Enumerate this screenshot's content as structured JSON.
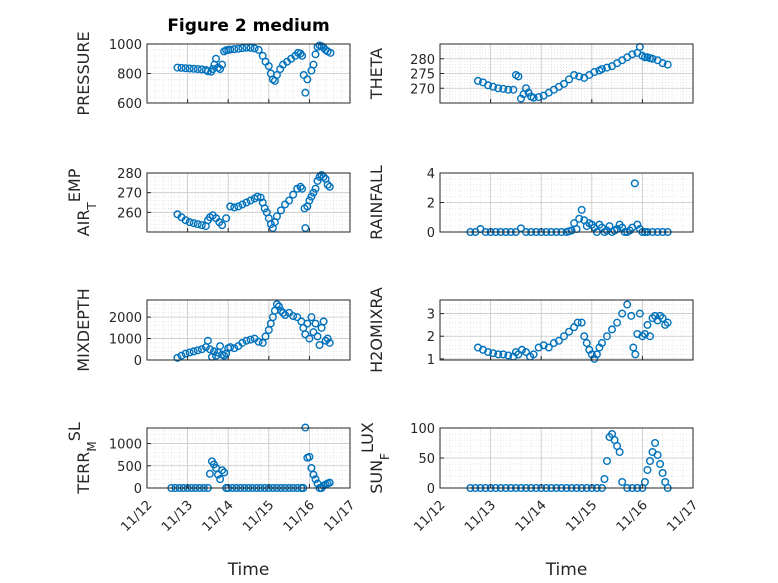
{
  "figure": {
    "title": "Figure 2 medium",
    "marker_color": "#0072BD",
    "x_tick_labels": [
      "11/12",
      "11/13",
      "11/14",
      "11/15",
      "11/16",
      "11/17"
    ]
  },
  "chart_data": [
    {
      "type": "scatter",
      "panel": "PRESSURE",
      "title": "Figure 2 medium",
      "ylabel": "PRESSURE",
      "ylabel_parts": {
        "main": "PRESSURE",
        "sub": "",
        "post": ""
      },
      "xlabel": "",
      "xlim": [
        0,
        5
      ],
      "ylim": [
        600,
        1000
      ],
      "ytick_values": [
        600,
        800,
        1000
      ],
      "ytick_labels": [
        "600",
        "800",
        "1000"
      ],
      "grid": true,
      "x": [
        0.75,
        0.85,
        0.95,
        1.05,
        1.15,
        1.25,
        1.35,
        1.45,
        1.5,
        1.58,
        1.62,
        1.66,
        1.7,
        1.75,
        1.8,
        1.85,
        1.9,
        1.95,
        2.0,
        2.05,
        2.15,
        2.25,
        2.35,
        2.45,
        2.55,
        2.65,
        2.75,
        2.85,
        2.92,
        3.0,
        3.05,
        3.1,
        3.15,
        3.2,
        3.28,
        3.35,
        3.45,
        3.55,
        3.65,
        3.72,
        3.78,
        3.82,
        3.86,
        3.9,
        3.95,
        4.05,
        4.1,
        4.15,
        4.2,
        4.25,
        4.3,
        4.35,
        4.4,
        4.45,
        4.52
      ],
      "y": [
        840,
        838,
        836,
        834,
        832,
        830,
        828,
        824,
        815,
        812,
        830,
        860,
        900,
        840,
        830,
        860,
        950,
        958,
        960,
        962,
        965,
        968,
        972,
        975,
        974,
        970,
        960,
        920,
        880,
        850,
        800,
        760,
        750,
        790,
        830,
        860,
        880,
        900,
        920,
        940,
        935,
        920,
        790,
        670,
        760,
        820,
        860,
        930,
        980,
        990,
        985,
        975,
        960,
        950,
        940
      ]
    },
    {
      "type": "scatter",
      "panel": "THETA",
      "title": "",
      "ylabel": "THETA",
      "ylabel_parts": {
        "main": "THETA",
        "sub": "",
        "post": ""
      },
      "xlabel": "",
      "xlim": [
        0,
        5
      ],
      "ylim": [
        265,
        285
      ],
      "ytick_values": [
        270,
        275,
        280
      ],
      "ytick_labels": [
        "270",
        "275",
        "280"
      ],
      "grid": true,
      "x": [
        0.75,
        0.85,
        0.95,
        1.05,
        1.15,
        1.25,
        1.35,
        1.45,
        1.5,
        1.55,
        1.6,
        1.65,
        1.7,
        1.75,
        1.8,
        1.85,
        1.95,
        2.05,
        2.15,
        2.25,
        2.35,
        2.45,
        2.55,
        2.65,
        2.75,
        2.85,
        2.95,
        3.05,
        3.15,
        3.2,
        3.3,
        3.4,
        3.5,
        3.6,
        3.7,
        3.8,
        3.9,
        3.95,
        4.0,
        4.05,
        4.1,
        4.15,
        4.2,
        4.3,
        4.4,
        4.5
      ],
      "y": [
        272.5,
        272,
        271,
        270.5,
        270,
        269.8,
        269.5,
        269.5,
        274.5,
        274,
        266.5,
        268,
        270,
        268.5,
        267.2,
        266.8,
        267,
        267.5,
        268.5,
        269.5,
        270.5,
        271.5,
        273,
        274.5,
        274,
        273.5,
        274.5,
        275.5,
        276,
        276.5,
        277,
        277.5,
        278.5,
        279.5,
        280.5,
        281.5,
        282,
        284,
        281,
        280.5,
        280.5,
        280.2,
        280,
        279.5,
        278.5,
        278
      ]
    },
    {
      "type": "scatter",
      "panel": "AIR_TEMP",
      "title": "",
      "ylabel": "AIR_TEMP",
      "ylabel_parts": {
        "main": "AIR",
        "sub": "T",
        "post": "EMP"
      },
      "xlabel": "",
      "xlim": [
        0,
        5
      ],
      "ylim": [
        250,
        280
      ],
      "ytick_values": [
        260,
        270,
        280
      ],
      "ytick_labels": [
        "260",
        "270",
        "280"
      ],
      "grid": true,
      "x": [
        0.75,
        0.85,
        0.95,
        1.05,
        1.15,
        1.25,
        1.35,
        1.45,
        1.5,
        1.55,
        1.62,
        1.7,
        1.78,
        1.85,
        1.95,
        2.05,
        2.15,
        2.25,
        2.35,
        2.45,
        2.55,
        2.65,
        2.72,
        2.8,
        2.85,
        2.9,
        2.95,
        3.0,
        3.05,
        3.1,
        3.15,
        3.2,
        3.3,
        3.4,
        3.5,
        3.6,
        3.7,
        3.78,
        3.82,
        3.88,
        3.9,
        3.95,
        4.0,
        4.05,
        4.1,
        4.15,
        4.2,
        4.25,
        4.3,
        4.35,
        4.4,
        4.45,
        4.5
      ],
      "y": [
        259,
        257.5,
        256,
        255,
        254.5,
        254,
        253.5,
        253,
        256,
        257.5,
        258.5,
        257,
        255,
        253.5,
        257,
        263,
        262.5,
        263,
        264,
        265,
        266,
        267,
        268,
        267.5,
        265,
        262,
        260,
        257,
        254,
        252,
        255,
        258,
        261,
        264,
        266,
        269,
        272,
        273,
        272,
        262,
        252,
        263,
        266,
        268,
        270,
        272,
        276,
        278,
        279,
        278,
        277,
        274,
        273
      ]
    },
    {
      "type": "scatter",
      "panel": "RAINFALL",
      "title": "",
      "ylabel": "RAINFALL",
      "ylabel_parts": {
        "main": "RAINFALL",
        "sub": "",
        "post": ""
      },
      "xlabel": "",
      "xlim": [
        0,
        5
      ],
      "ylim": [
        0,
        4
      ],
      "ytick_values": [
        0,
        2,
        4
      ],
      "ytick_labels": [
        "0",
        "2",
        "4"
      ],
      "grid": true,
      "x": [
        0.6,
        0.7,
        0.8,
        0.9,
        1.0,
        1.1,
        1.2,
        1.3,
        1.4,
        1.5,
        1.6,
        1.7,
        1.8,
        1.9,
        2.0,
        2.1,
        2.2,
        2.3,
        2.4,
        2.5,
        2.55,
        2.6,
        2.65,
        2.7,
        2.75,
        2.8,
        2.85,
        2.9,
        2.95,
        3.0,
        3.05,
        3.1,
        3.15,
        3.2,
        3.25,
        3.3,
        3.35,
        3.4,
        3.45,
        3.5,
        3.55,
        3.6,
        3.65,
        3.7,
        3.75,
        3.8,
        3.85,
        3.9,
        3.95,
        4.0,
        4.05,
        4.1,
        4.2,
        4.3,
        4.4,
        4.5
      ],
      "y": [
        0,
        0,
        0.2,
        0,
        0,
        0,
        0,
        0,
        0,
        0,
        0.25,
        0,
        0,
        0,
        0,
        0,
        0,
        0,
        0,
        0,
        0.05,
        0.1,
        0.6,
        0.2,
        0.9,
        1.5,
        0.8,
        0.4,
        0.6,
        0.5,
        0.3,
        0,
        0.5,
        0.3,
        0,
        0.1,
        0.4,
        0,
        0.1,
        0.2,
        0.5,
        0.3,
        0,
        0,
        0.1,
        0.3,
        3.3,
        0.5,
        0.2,
        0,
        0,
        0,
        0,
        0,
        0,
        0
      ]
    },
    {
      "type": "scatter",
      "panel": "MIXDEPTH",
      "title": "",
      "ylabel": "MIXDEPTH",
      "ylabel_parts": {
        "main": "MIXDEPTH",
        "sub": "",
        "post": ""
      },
      "xlabel": "",
      "xlim": [
        0,
        5
      ],
      "ylim": [
        0,
        2800
      ],
      "ytick_values": [
        0,
        1000,
        2000
      ],
      "ytick_labels": [
        "0",
        "1000",
        "2000"
      ],
      "grid": true,
      "x": [
        0.75,
        0.85,
        0.95,
        1.05,
        1.15,
        1.25,
        1.35,
        1.45,
        1.5,
        1.55,
        1.6,
        1.65,
        1.7,
        1.75,
        1.8,
        1.85,
        1.9,
        1.95,
        2.0,
        2.05,
        2.15,
        2.25,
        2.35,
        2.45,
        2.55,
        2.65,
        2.75,
        2.85,
        2.92,
        3.0,
        3.05,
        3.1,
        3.15,
        3.2,
        3.25,
        3.3,
        3.35,
        3.4,
        3.5,
        3.6,
        3.7,
        3.8,
        3.85,
        3.9,
        3.95,
        4.0,
        4.05,
        4.1,
        4.15,
        4.2,
        4.25,
        4.3,
        4.35,
        4.4,
        4.45,
        4.5
      ],
      "y": [
        100,
        200,
        300,
        350,
        400,
        450,
        500,
        600,
        900,
        500,
        150,
        400,
        200,
        350,
        650,
        250,
        200,
        300,
        550,
        600,
        550,
        650,
        800,
        900,
        950,
        1000,
        850,
        800,
        1100,
        1400,
        1700,
        2000,
        2300,
        2600,
        2500,
        2300,
        2200,
        2100,
        2200,
        2050,
        2000,
        1800,
        1500,
        1200,
        1700,
        1000,
        2000,
        1300,
        1700,
        1100,
        700,
        1500,
        1800,
        900,
        1000,
        800
      ]
    },
    {
      "type": "scatter",
      "panel": "H2OMIXRA",
      "title": "",
      "ylabel": "H2OMIXRA",
      "ylabel_parts": {
        "main": "H2OMIXRA",
        "sub": "",
        "post": ""
      },
      "xlabel": "",
      "xlim": [
        0,
        5
      ],
      "ylim": [
        0.95,
        3.6
      ],
      "ytick_values": [
        1,
        2,
        3
      ],
      "ytick_labels": [
        "1",
        "2",
        "3"
      ],
      "grid": true,
      "x": [
        0.75,
        0.85,
        0.95,
        1.05,
        1.15,
        1.25,
        1.35,
        1.45,
        1.5,
        1.55,
        1.62,
        1.7,
        1.78,
        1.85,
        1.95,
        2.05,
        2.15,
        2.25,
        2.35,
        2.45,
        2.55,
        2.65,
        2.72,
        2.8,
        2.85,
        2.9,
        2.95,
        3.0,
        3.05,
        3.1,
        3.15,
        3.2,
        3.3,
        3.4,
        3.5,
        3.6,
        3.7,
        3.78,
        3.82,
        3.86,
        3.9,
        3.95,
        4.0,
        4.05,
        4.1,
        4.15,
        4.2,
        4.25,
        4.3,
        4.35,
        4.4,
        4.45,
        4.5
      ],
      "y": [
        1.5,
        1.4,
        1.3,
        1.25,
        1.2,
        1.2,
        1.15,
        1.1,
        1.3,
        1.2,
        1.4,
        1.3,
        1.1,
        1.2,
        1.5,
        1.6,
        1.5,
        1.7,
        1.8,
        2.0,
        2.2,
        2.4,
        2.6,
        2.6,
        2.0,
        1.7,
        1.4,
        1.2,
        1.0,
        1.2,
        1.5,
        1.7,
        2.0,
        2.3,
        2.6,
        3.0,
        3.4,
        2.9,
        1.5,
        1.2,
        2.1,
        3.0,
        2.0,
        2.1,
        2.5,
        2.0,
        2.8,
        2.9,
        2.7,
        2.9,
        2.8,
        2.5,
        2.6
      ]
    },
    {
      "type": "scatter",
      "panel": "TERR_MSL",
      "title": "",
      "ylabel": "TERR_MSL",
      "ylabel_parts": {
        "main": "TERR",
        "sub": "M",
        "post": "SL"
      },
      "xlabel": "Time",
      "xlim": [
        0,
        5
      ],
      "ylim": [
        0,
        1350
      ],
      "ytick_values": [
        0,
        500,
        1000
      ],
      "ytick_labels": [
        "0",
        "500",
        "1000"
      ],
      "grid": true,
      "x": [
        0.6,
        0.7,
        0.8,
        0.9,
        1.0,
        1.1,
        1.2,
        1.3,
        1.4,
        1.5,
        1.55,
        1.6,
        1.65,
        1.7,
        1.75,
        1.8,
        1.85,
        1.9,
        1.95,
        2.0,
        2.1,
        2.2,
        2.3,
        2.4,
        2.5,
        2.6,
        2.7,
        2.8,
        2.9,
        3.0,
        3.1,
        3.2,
        3.3,
        3.4,
        3.5,
        3.6,
        3.7,
        3.8,
        3.85,
        3.9,
        3.95,
        4.0,
        4.05,
        4.1,
        4.15,
        4.2,
        4.25,
        4.3,
        4.35,
        4.4,
        4.45,
        4.5
      ],
      "y": [
        0,
        0,
        0,
        0,
        0,
        0,
        0,
        0,
        0,
        0,
        320,
        600,
        530,
        450,
        300,
        200,
        400,
        350,
        0,
        0,
        0,
        0,
        0,
        0,
        0,
        0,
        0,
        0,
        0,
        0,
        0,
        0,
        0,
        0,
        0,
        0,
        0,
        0,
        0,
        1360,
        680,
        700,
        450,
        300,
        200,
        100,
        0,
        0,
        50,
        80,
        100,
        120
      ]
    },
    {
      "type": "scatter",
      "panel": "SUN_FLUX",
      "title": "",
      "ylabel": "SUN_FLUX",
      "ylabel_parts": {
        "main": "SUN",
        "sub": "F",
        "post": "LUX"
      },
      "xlabel": "Time",
      "xlim": [
        0,
        5
      ],
      "ylim": [
        0,
        100
      ],
      "ytick_values": [
        0,
        50,
        100
      ],
      "ytick_labels": [
        "0",
        "50",
        "100"
      ],
      "grid": true,
      "x": [
        0.6,
        0.7,
        0.8,
        0.9,
        1.0,
        1.1,
        1.2,
        1.3,
        1.4,
        1.5,
        1.6,
        1.7,
        1.8,
        1.9,
        2.0,
        2.1,
        2.2,
        2.3,
        2.4,
        2.5,
        2.6,
        2.7,
        2.8,
        2.9,
        3.0,
        3.1,
        3.2,
        3.25,
        3.3,
        3.35,
        3.4,
        3.45,
        3.5,
        3.55,
        3.6,
        3.7,
        3.8,
        3.9,
        4.0,
        4.05,
        4.1,
        4.15,
        4.2,
        4.25,
        4.3,
        4.35,
        4.4,
        4.45,
        4.5
      ],
      "y": [
        0,
        0,
        0,
        0,
        0,
        0,
        0,
        0,
        0,
        0,
        0,
        0,
        0,
        0,
        0,
        0,
        0,
        0,
        0,
        0,
        0,
        0,
        0,
        0,
        0,
        0,
        0,
        15,
        45,
        85,
        90,
        80,
        70,
        60,
        10,
        0,
        0,
        0,
        0,
        10,
        30,
        45,
        60,
        75,
        55,
        40,
        25,
        10,
        0
      ]
    }
  ]
}
